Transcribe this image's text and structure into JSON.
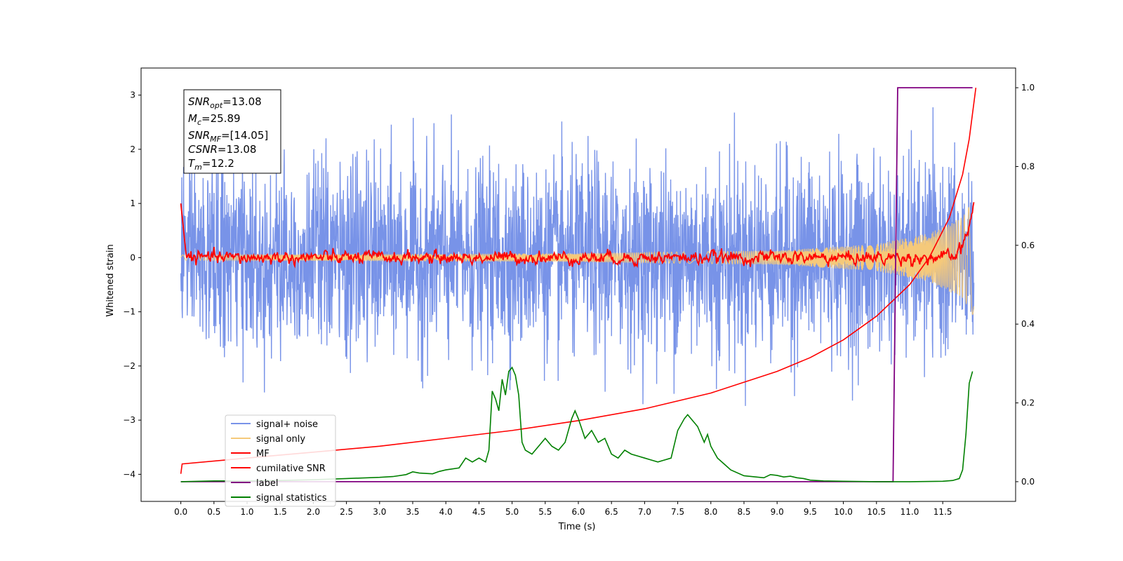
{
  "chart_data": {
    "type": "line",
    "title": "",
    "xlabel": "Time (s)",
    "ylabel": "Whitened strain",
    "y2label": "",
    "xlim": [
      -0.6,
      12.6
    ],
    "ylim": [
      -4.5,
      3.5
    ],
    "y2lim": [
      -0.05,
      1.05
    ],
    "x_ticks": [
      0.0,
      0.5,
      1.0,
      1.5,
      2.0,
      2.5,
      3.0,
      3.5,
      4.0,
      4.5,
      5.0,
      5.5,
      6.0,
      6.5,
      7.0,
      7.5,
      8.0,
      8.5,
      9.0,
      9.5,
      10.0,
      10.5,
      11.0,
      11.5
    ],
    "x_tick_labels": [
      "0.0",
      "0.5",
      "1.0",
      "1.5",
      "2.0",
      "2.5",
      "3.0",
      "3.5",
      "4.0",
      "4.5",
      "5.0",
      "5.5",
      "6.0",
      "6.5",
      "7.0",
      "7.5",
      "8.0",
      "8.5",
      "9.0",
      "9.5",
      "10.0",
      "10.5",
      "11.0",
      "11.5"
    ],
    "y_ticks": [
      -4,
      -3,
      -2,
      -1,
      0,
      1,
      2,
      3
    ],
    "y_tick_labels": [
      "−4",
      "−3",
      "−2",
      "−1",
      "0",
      "1",
      "2",
      "3"
    ],
    "y2_ticks": [
      0.0,
      0.2,
      0.4,
      0.6,
      0.8,
      1.0
    ],
    "y2_tick_labels": [
      "0.0",
      "0.2",
      "0.4",
      "0.6",
      "0.8",
      "1.0"
    ],
    "grid": false,
    "legend_position": "bottom-left",
    "info_box": {
      "lines": [
        {
          "base": "SNR",
          "sub": "opt",
          "value": "=13.08"
        },
        {
          "base": "M",
          "sub": "c",
          "value": "=25.89"
        },
        {
          "base": "SNR",
          "sub": "MF",
          "value": "=[14.05]"
        },
        {
          "base": "CSNR",
          "sub": "",
          "value": "=13.08"
        },
        {
          "base": "T",
          "sub": "m",
          "value": "=12.2"
        }
      ]
    },
    "series": [
      {
        "name": "signal+ noise",
        "color": "#7893e8",
        "axis": "left",
        "note": "whitened data, approx. unit-variance noise with peaks between about -2.8 and 3.2"
      },
      {
        "name": "signal only",
        "color": "#f5c97a",
        "axis": "left",
        "envelope": [
          [
            0.0,
            0.05
          ],
          [
            6.0,
            0.08
          ],
          [
            9.0,
            0.13
          ],
          [
            10.5,
            0.25
          ],
          [
            11.3,
            0.45
          ],
          [
            11.8,
            0.75
          ],
          [
            12.0,
            1.15
          ]
        ]
      },
      {
        "name": "MF",
        "color": "#ff0000",
        "axis": "left",
        "note": "matched-filter output near 0, starts at 1.0 at t=0, rises to about 1.0 at the end"
      },
      {
        "name": "cumilative SNR",
        "color": "#ff0000",
        "axis": "right",
        "x": [
          0.0,
          0.02,
          1.0,
          2.0,
          3.0,
          4.0,
          5.0,
          6.0,
          7.0,
          8.0,
          9.0,
          9.5,
          10.0,
          10.5,
          11.0,
          11.3,
          11.6,
          11.8,
          11.9,
          12.0
        ],
        "values": [
          0.02,
          0.045,
          0.06,
          0.075,
          0.09,
          0.11,
          0.13,
          0.155,
          0.185,
          0.225,
          0.28,
          0.315,
          0.36,
          0.42,
          0.5,
          0.57,
          0.67,
          0.78,
          0.87,
          1.0
        ]
      },
      {
        "name": "label",
        "color": "#800080",
        "axis": "right",
        "x": [
          0.0,
          10.75,
          10.82,
          11.95
        ],
        "values": [
          0.0,
          0.0,
          1.0,
          1.0
        ]
      },
      {
        "name": "signal statistics",
        "color": "#008000",
        "axis": "right",
        "x": [
          0.0,
          0.5,
          1.0,
          1.5,
          2.0,
          2.5,
          3.0,
          3.2,
          3.4,
          3.5,
          3.6,
          3.8,
          3.9,
          4.0,
          4.2,
          4.3,
          4.4,
          4.5,
          4.6,
          4.65,
          4.7,
          4.75,
          4.8,
          4.85,
          4.9,
          4.95,
          5.0,
          5.05,
          5.1,
          5.15,
          5.2,
          5.3,
          5.4,
          5.5,
          5.6,
          5.7,
          5.8,
          5.9,
          5.95,
          6.0,
          6.1,
          6.2,
          6.3,
          6.4,
          6.5,
          6.6,
          6.7,
          6.8,
          6.9,
          7.0,
          7.1,
          7.2,
          7.3,
          7.4,
          7.5,
          7.6,
          7.65,
          7.7,
          7.8,
          7.85,
          7.9,
          7.95,
          8.0,
          8.1,
          8.2,
          8.3,
          8.5,
          8.8,
          8.9,
          9.0,
          9.1,
          9.2,
          9.3,
          9.4,
          9.5,
          9.7,
          10.0,
          10.5,
          11.0,
          11.5,
          11.65,
          11.75,
          11.8,
          11.85,
          11.9,
          11.95
        ],
        "values": [
          0.0,
          0.002,
          0.002,
          0.003,
          0.005,
          0.008,
          0.011,
          0.013,
          0.018,
          0.025,
          0.022,
          0.02,
          0.026,
          0.03,
          0.035,
          0.06,
          0.05,
          0.06,
          0.05,
          0.08,
          0.23,
          0.21,
          0.18,
          0.26,
          0.22,
          0.28,
          0.29,
          0.27,
          0.22,
          0.1,
          0.08,
          0.07,
          0.09,
          0.11,
          0.09,
          0.08,
          0.1,
          0.16,
          0.18,
          0.16,
          0.11,
          0.13,
          0.1,
          0.11,
          0.07,
          0.06,
          0.08,
          0.07,
          0.065,
          0.06,
          0.055,
          0.05,
          0.055,
          0.06,
          0.13,
          0.16,
          0.17,
          0.16,
          0.14,
          0.12,
          0.1,
          0.12,
          0.09,
          0.06,
          0.045,
          0.03,
          0.015,
          0.01,
          0.018,
          0.016,
          0.012,
          0.014,
          0.01,
          0.008,
          0.004,
          0.002,
          0.001,
          0.0,
          0.0,
          0.001,
          0.003,
          0.008,
          0.03,
          0.12,
          0.25,
          0.28
        ]
      }
    ]
  }
}
